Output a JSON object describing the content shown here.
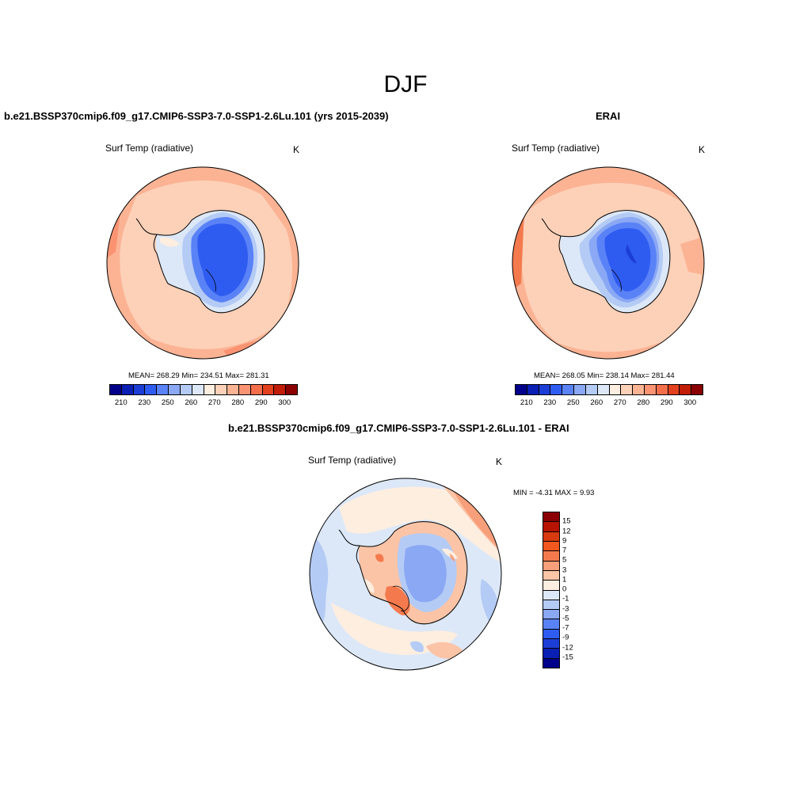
{
  "figure": {
    "title": "DJF"
  },
  "panels": {
    "model": {
      "title": "b.e21.BSSP370cmip6.f09_g17.CMIP6-SSP3-7.0-SSP1-2.6Lu.101 (yrs 2015-2039)",
      "variable": "Surf Temp (radiative)",
      "units": "K",
      "stats": "MEAN= 268.29  Min= 234.51  Max= 281.31"
    },
    "obs": {
      "title": "ERAI",
      "variable": "Surf Temp (radiative)",
      "units": "K",
      "stats": "MEAN= 268.05  Min= 238.14  Max= 281.44"
    },
    "diff": {
      "title": "b.e21.BSSP370cmip6.f09_g17.CMIP6-SSP3-7.0-SSP1-2.6Lu.101 - ERAI",
      "variable": "Surf Temp (radiative)",
      "units": "K",
      "stats": "MIN =  -4.31 MAX =   9.93"
    }
  },
  "colorbar_abs": {
    "colors": [
      "#00008b",
      "#0a1fb4",
      "#1c3ed6",
      "#2f5cf0",
      "#5a82f7",
      "#8aa8f4",
      "#b4cbf5",
      "#dce8f8",
      "#fdeee0",
      "#fdd1b8",
      "#fbb394",
      "#fa9372",
      "#f46e4c",
      "#e3401e",
      "#c21d08",
      "#8b0000"
    ],
    "ticks": [
      "210",
      "230",
      "250",
      "260",
      "270",
      "280",
      "290",
      "300"
    ]
  },
  "colorbar_diff": {
    "colors": [
      "#8b0000",
      "#b61400",
      "#d73a0f",
      "#f2571f",
      "#f47a4e",
      "#f79e7a",
      "#fbc4a6",
      "#fdeee0",
      "#dce8f8",
      "#b4cbf5",
      "#8aa8f4",
      "#5a82f7",
      "#2f5cf0",
      "#1c3ed6",
      "#0a1fb4",
      "#00008b"
    ],
    "ticks": [
      "15",
      "12",
      "9",
      "7",
      "5",
      "3",
      "1",
      "0",
      "-1",
      "-3",
      "-5",
      "-7",
      "-9",
      "-12",
      "-15"
    ]
  },
  "chart_data": [
    {
      "type": "heatmap",
      "title": "b.e21.BSSP370cmip6.f09_g17.CMIP6-SSP3-7.0-SSP1-2.6Lu.101 (yrs 2015-2039)",
      "variable": "Surf Temp (radiative)",
      "units": "K",
      "projection": "south polar stereographic",
      "mean": 268.29,
      "min": 234.51,
      "max": 281.31,
      "colorbar_ticks": [
        210,
        230,
        250,
        260,
        270,
        280,
        290,
        300
      ]
    },
    {
      "type": "heatmap",
      "title": "ERAI",
      "variable": "Surf Temp (radiative)",
      "units": "K",
      "projection": "south polar stereographic",
      "mean": 268.05,
      "min": 238.14,
      "max": 281.44,
      "colorbar_ticks": [
        210,
        230,
        250,
        260,
        270,
        280,
        290,
        300
      ]
    },
    {
      "type": "heatmap",
      "title": "b.e21.BSSP370cmip6.f09_g17.CMIP6-SSP3-7.0-SSP1-2.6Lu.101 - ERAI",
      "variable": "Surf Temp (radiative)",
      "units": "K",
      "projection": "south polar stereographic",
      "min": -4.31,
      "max": 9.93,
      "colorbar_ticks": [
        15,
        12,
        9,
        7,
        5,
        3,
        1,
        0,
        -1,
        -3,
        -5,
        -7,
        -9,
        -12,
        -15
      ]
    }
  ]
}
